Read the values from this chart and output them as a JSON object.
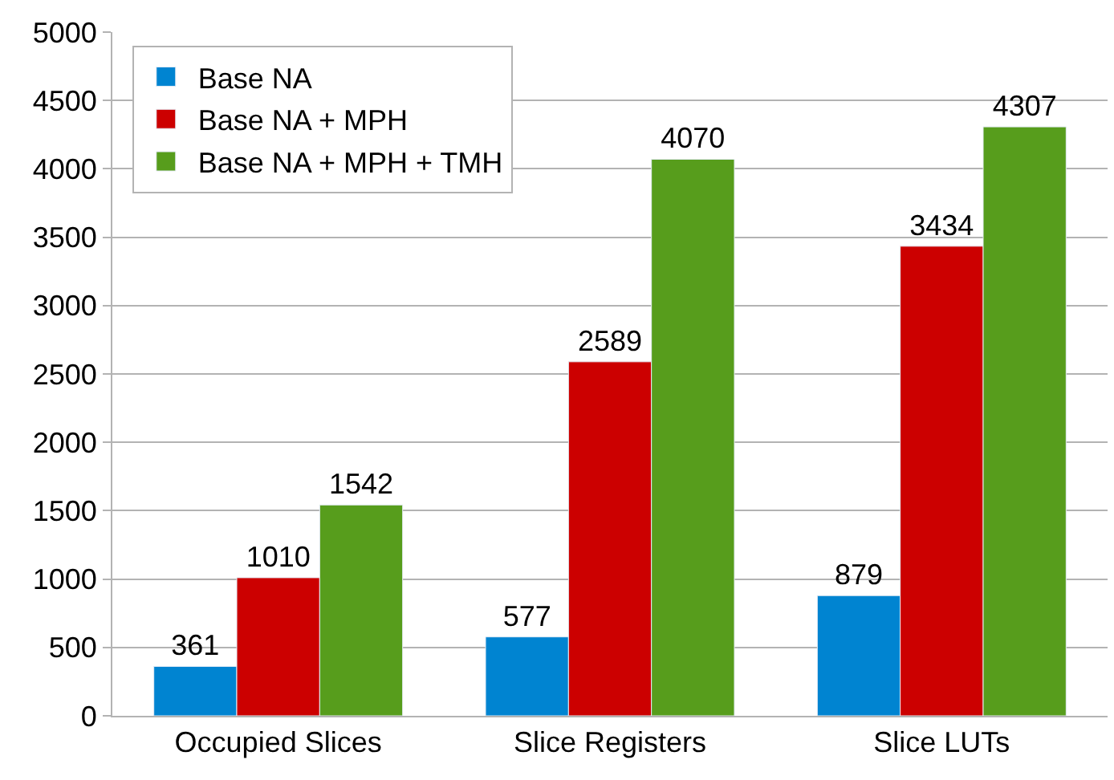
{
  "chart_data": {
    "type": "bar",
    "categories": [
      "Occupied Slices",
      "Slice Registers",
      "Slice LUTs"
    ],
    "series": [
      {
        "name": "Base NA",
        "color": "#0084d1",
        "values": [
          361,
          577,
          879
        ]
      },
      {
        "name": "Base NA + MPH",
        "color": "#cc0000",
        "values": [
          1010,
          2589,
          3434
        ]
      },
      {
        "name": "Base NA + MPH + TMH",
        "color": "#579d1c",
        "values": [
          1542,
          4070,
          4307
        ]
      }
    ],
    "ylim": [
      0,
      5000
    ],
    "yticks": [
      0,
      500,
      1000,
      1500,
      2000,
      2500,
      3000,
      3500,
      4000,
      4500,
      5000
    ],
    "grid": "y",
    "legend": "top left",
    "data_labels": true
  }
}
